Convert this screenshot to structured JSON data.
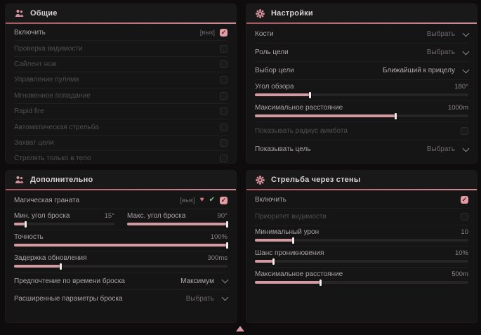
{
  "colors": {
    "accent": "#d49aa1",
    "underline_from": "#a85862",
    "underline_to": "#cf8b94",
    "checkbox_on": "#e29ba3",
    "icon_red": "#dd7580",
    "icon_green": "#80c880"
  },
  "footer": {
    "cursor_icon": "up-triangle-cursor-icon"
  },
  "panels": [
    {
      "id": "general",
      "title": "Общие",
      "icon": "people-icon",
      "rows": [
        {
          "type": "checkbox",
          "label": "Включить",
          "tag": "[вык]",
          "checked": true,
          "enabled": true
        },
        {
          "type": "checkbox",
          "label": "Проверка видимости",
          "checked": false,
          "enabled": false
        },
        {
          "type": "checkbox",
          "label": "Сайлент нож",
          "checked": false,
          "enabled": false
        },
        {
          "type": "checkbox",
          "label": "Управление пулями",
          "checked": false,
          "enabled": false
        },
        {
          "type": "checkbox",
          "label": "Мгновенное попадание",
          "checked": false,
          "enabled": false
        },
        {
          "type": "checkbox",
          "label": "Rapid fire",
          "checked": false,
          "enabled": false
        },
        {
          "type": "checkbox",
          "label": "Автоматическая стрельба",
          "checked": false,
          "enabled": false
        },
        {
          "type": "checkbox",
          "label": "Захват цели",
          "checked": false,
          "enabled": false
        },
        {
          "type": "checkbox",
          "label": "Стрелять только в тело",
          "checked": false,
          "enabled": false
        }
      ]
    },
    {
      "id": "settings",
      "title": "Настройки",
      "icon": "gear-icon",
      "rows": [
        {
          "type": "select",
          "label": "Кости",
          "value": "Выбрать",
          "muted": true,
          "enabled": true
        },
        {
          "type": "select",
          "label": "Роль цели",
          "value": "Выбрать",
          "muted": true,
          "enabled": true
        },
        {
          "type": "select",
          "label": "Выбор цели",
          "value": "Ближайший к прицелу",
          "muted": false,
          "enabled": true
        },
        {
          "type": "slider",
          "label": "Угол обзора",
          "value": "180°",
          "fill": 26,
          "enabled": true
        },
        {
          "type": "slider",
          "label": "Максимальное расстояние",
          "value": "1000m",
          "fill": 66,
          "enabled": true
        },
        {
          "type": "checkbox",
          "label": "Показывать радиус аимбота",
          "checked": false,
          "enabled": false
        },
        {
          "type": "select",
          "label": "Показывать цель",
          "value": "Выбрать",
          "muted": true,
          "enabled": true
        }
      ]
    },
    {
      "id": "additional",
      "title": "Дополнительно",
      "icon": "people-icon",
      "rows": [
        {
          "type": "checkbox",
          "label": "Магическая граната",
          "tag": "[вык]",
          "icons": [
            "heart-off-icon",
            "check-circle-icon"
          ],
          "checked": true,
          "enabled": true
        },
        {
          "type": "slider-pair",
          "items": [
            {
              "label": "Мин. угол броска",
              "value": "15°",
              "fill": 12,
              "enabled": true
            },
            {
              "label": "Макс. угол броска",
              "value": "90°",
              "fill": 100,
              "enabled": true
            }
          ]
        },
        {
          "type": "slider",
          "label": "Точность",
          "value": "100%",
          "fill": 100,
          "enabled": true
        },
        {
          "type": "slider",
          "label": "Задержка обновления",
          "value": "300ms",
          "fill": 22,
          "enabled": true
        },
        {
          "type": "select",
          "label": "Предпочтение по времени броска",
          "value": "Максимум",
          "muted": false,
          "enabled": true
        },
        {
          "type": "select",
          "label": "Расширенные параметры броска",
          "value": "Выбрать",
          "muted": true,
          "enabled": true
        }
      ]
    },
    {
      "id": "walls",
      "title": "Стрельба через стены",
      "icon": "gear-icon",
      "rows": [
        {
          "type": "checkbox",
          "label": "Включить",
          "checked": true,
          "enabled": true
        },
        {
          "type": "checkbox",
          "label": "Приоритет видимости",
          "checked": false,
          "enabled": false
        },
        {
          "type": "slider",
          "label": "Минимальный урон",
          "value": "10",
          "fill": 18,
          "enabled": true
        },
        {
          "type": "slider",
          "label": "Шанс проникновения",
          "value": "10%",
          "fill": 9,
          "enabled": true
        },
        {
          "type": "slider",
          "label": "Максимальное расстояние",
          "value": "500m",
          "fill": 31,
          "enabled": true
        }
      ]
    }
  ]
}
